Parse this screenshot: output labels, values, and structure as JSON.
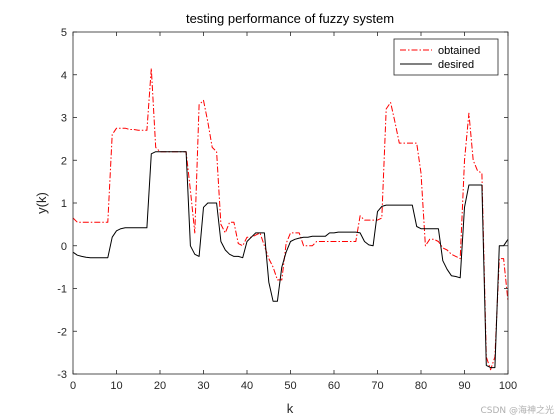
{
  "chart_data": {
    "type": "line",
    "title": "testing performance of fuzzy system",
    "xlabel": "k",
    "ylabel": "y(k)",
    "xlim": [
      0,
      100
    ],
    "ylim": [
      -3,
      5
    ],
    "xticks": [
      0,
      10,
      20,
      30,
      40,
      50,
      60,
      70,
      80,
      90,
      100
    ],
    "yticks": [
      -3,
      -2,
      -1,
      0,
      1,
      2,
      3,
      4,
      5
    ],
    "grid": false,
    "legend_position": "top-right",
    "series": [
      {
        "name": "obtained",
        "color": "#ff0000",
        "style": "dash-dot",
        "x": [
          0,
          1,
          2,
          3,
          4,
          5,
          6,
          7,
          8,
          9,
          10,
          11,
          12,
          13,
          14,
          15,
          16,
          17,
          18,
          19,
          20,
          21,
          22,
          23,
          24,
          25,
          26,
          27,
          28,
          29,
          30,
          31,
          32,
          33,
          34,
          35,
          36,
          37,
          38,
          39,
          40,
          41,
          42,
          43,
          44,
          45,
          46,
          47,
          48,
          49,
          50,
          51,
          52,
          53,
          54,
          55,
          56,
          57,
          58,
          59,
          60,
          61,
          62,
          63,
          64,
          65,
          66,
          67,
          68,
          69,
          70,
          71,
          72,
          73,
          74,
          75,
          76,
          77,
          78,
          79,
          80,
          81,
          82,
          83,
          84,
          85,
          86,
          87,
          88,
          89,
          90,
          91,
          92,
          93,
          94,
          95,
          96,
          97,
          98,
          99,
          100
        ],
        "y": [
          0.65,
          0.55,
          0.55,
          0.55,
          0.55,
          0.55,
          0.55,
          0.55,
          0.55,
          2.6,
          2.75,
          2.75,
          2.75,
          2.72,
          2.72,
          2.7,
          2.7,
          2.7,
          4.15,
          2.3,
          2.2,
          2.2,
          2.2,
          2.2,
          2.2,
          2.2,
          2.2,
          1.3,
          0.3,
          3.3,
          3.4,
          2.9,
          2.3,
          2.2,
          0.5,
          0.3,
          0.55,
          0.55,
          0.05,
          0.0,
          0.2,
          0.2,
          0.25,
          0.3,
          0.0,
          -0.3,
          -0.5,
          -0.8,
          -0.8,
          0.05,
          0.3,
          0.3,
          0.3,
          0.0,
          0.0,
          0.0,
          0.1,
          0.1,
          0.1,
          0.1,
          0.1,
          0.1,
          0.1,
          0.1,
          0.1,
          0.1,
          0.7,
          0.6,
          0.6,
          0.6,
          0.6,
          0.65,
          3.2,
          3.35,
          2.9,
          2.4,
          2.4,
          2.4,
          2.4,
          2.4,
          1.7,
          0.0,
          0.15,
          0.15,
          0.1,
          -0.05,
          -0.1,
          -0.2,
          -0.25,
          -0.3,
          2.0,
          3.1,
          2.0,
          1.75,
          1.7,
          -2.6,
          -2.9,
          -2.6,
          -0.3,
          -0.3,
          -1.3
        ]
      },
      {
        "name": "desired",
        "color": "#000000",
        "style": "solid",
        "x": [
          0,
          1,
          2,
          3,
          4,
          5,
          6,
          7,
          8,
          9,
          10,
          11,
          12,
          13,
          14,
          15,
          16,
          17,
          18,
          19,
          20,
          21,
          22,
          23,
          24,
          25,
          26,
          27,
          28,
          29,
          30,
          31,
          32,
          33,
          34,
          35,
          36,
          37,
          38,
          39,
          40,
          41,
          42,
          43,
          44,
          45,
          46,
          47,
          48,
          49,
          50,
          51,
          52,
          53,
          54,
          55,
          56,
          57,
          58,
          59,
          60,
          61,
          62,
          63,
          64,
          65,
          66,
          67,
          68,
          69,
          70,
          71,
          72,
          73,
          74,
          75,
          76,
          77,
          78,
          79,
          80,
          81,
          82,
          83,
          84,
          85,
          86,
          87,
          88,
          89,
          90,
          91,
          92,
          93,
          94,
          95,
          96,
          97,
          98,
          99,
          100
        ],
        "y": [
          -0.15,
          -0.22,
          -0.25,
          -0.27,
          -0.28,
          -0.28,
          -0.28,
          -0.28,
          -0.28,
          0.2,
          0.35,
          0.4,
          0.42,
          0.42,
          0.42,
          0.42,
          0.42,
          0.42,
          2.15,
          2.2,
          2.2,
          2.2,
          2.2,
          2.2,
          2.2,
          2.2,
          2.2,
          0.0,
          -0.2,
          -0.25,
          0.9,
          1.0,
          1.0,
          1.0,
          0.1,
          -0.1,
          -0.2,
          -0.25,
          -0.25,
          -0.28,
          0.1,
          0.2,
          0.3,
          0.3,
          0.3,
          -0.85,
          -1.3,
          -1.3,
          -0.5,
          -0.15,
          0.1,
          0.15,
          0.18,
          0.2,
          0.2,
          0.22,
          0.22,
          0.22,
          0.22,
          0.3,
          0.3,
          0.32,
          0.32,
          0.32,
          0.32,
          0.32,
          0.3,
          0.1,
          0.02,
          0.0,
          0.8,
          0.92,
          0.95,
          0.95,
          0.95,
          0.95,
          0.95,
          0.95,
          0.95,
          0.45,
          0.4,
          0.4,
          0.4,
          0.4,
          0.4,
          -0.35,
          -0.55,
          -0.7,
          -0.72,
          -0.75,
          0.9,
          1.42,
          1.42,
          1.42,
          1.42,
          -2.8,
          -2.85,
          -2.85,
          0.0,
          0.0,
          0.15
        ]
      }
    ]
  },
  "watermark": "CSDN @海神之光"
}
